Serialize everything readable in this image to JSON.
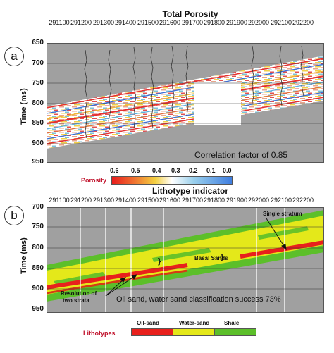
{
  "panel_a": {
    "letter": "a",
    "title": "Total Porosity",
    "x_ticks": [
      "291100",
      "291200",
      "291300",
      "291400",
      "291500",
      "291600",
      "291700",
      "291800",
      "291900",
      "292000",
      "292100",
      "292200"
    ],
    "y_ticks": [
      "650",
      "700",
      "750",
      "800",
      "850",
      "900",
      "950"
    ],
    "y_label": "Time (ms)",
    "annotation": "Correlation factor of 0.85",
    "colorbar_title": "Porosity",
    "colorbar_ticks": [
      "0.6",
      "0.5",
      "0.4",
      "0.3",
      "0.2",
      "0.1",
      "0.0"
    ],
    "colors": {
      "background": "#a0a0a0",
      "gap": "#ffffff"
    }
  },
  "panel_b": {
    "letter": "b",
    "title": "Lithotype indicator",
    "x_ticks": [
      "291100",
      "291200",
      "291300",
      "291400",
      "291500",
      "291600",
      "291700",
      "291800",
      "291900",
      "292000",
      "292100",
      "292200"
    ],
    "y_ticks": [
      "700",
      "750",
      "800",
      "850",
      "900",
      "950"
    ],
    "y_label": "Time (ms)",
    "annotation": "Oil sand, water sand classification success 73%",
    "note_basal": "Basal Sands",
    "note_single": "Single stratum",
    "note_resolution_1": "Resolution of",
    "note_resolution_2": "two strata",
    "legend_title": "Lithotypes",
    "legend_labels": [
      "Oil-sand",
      "Water-sand",
      "Shale"
    ],
    "colors": {
      "oil_sand": "#e8201c",
      "water_sand": "#e4e81a",
      "shale": "#5cbf2a",
      "background": "#a0a0a0"
    }
  }
}
